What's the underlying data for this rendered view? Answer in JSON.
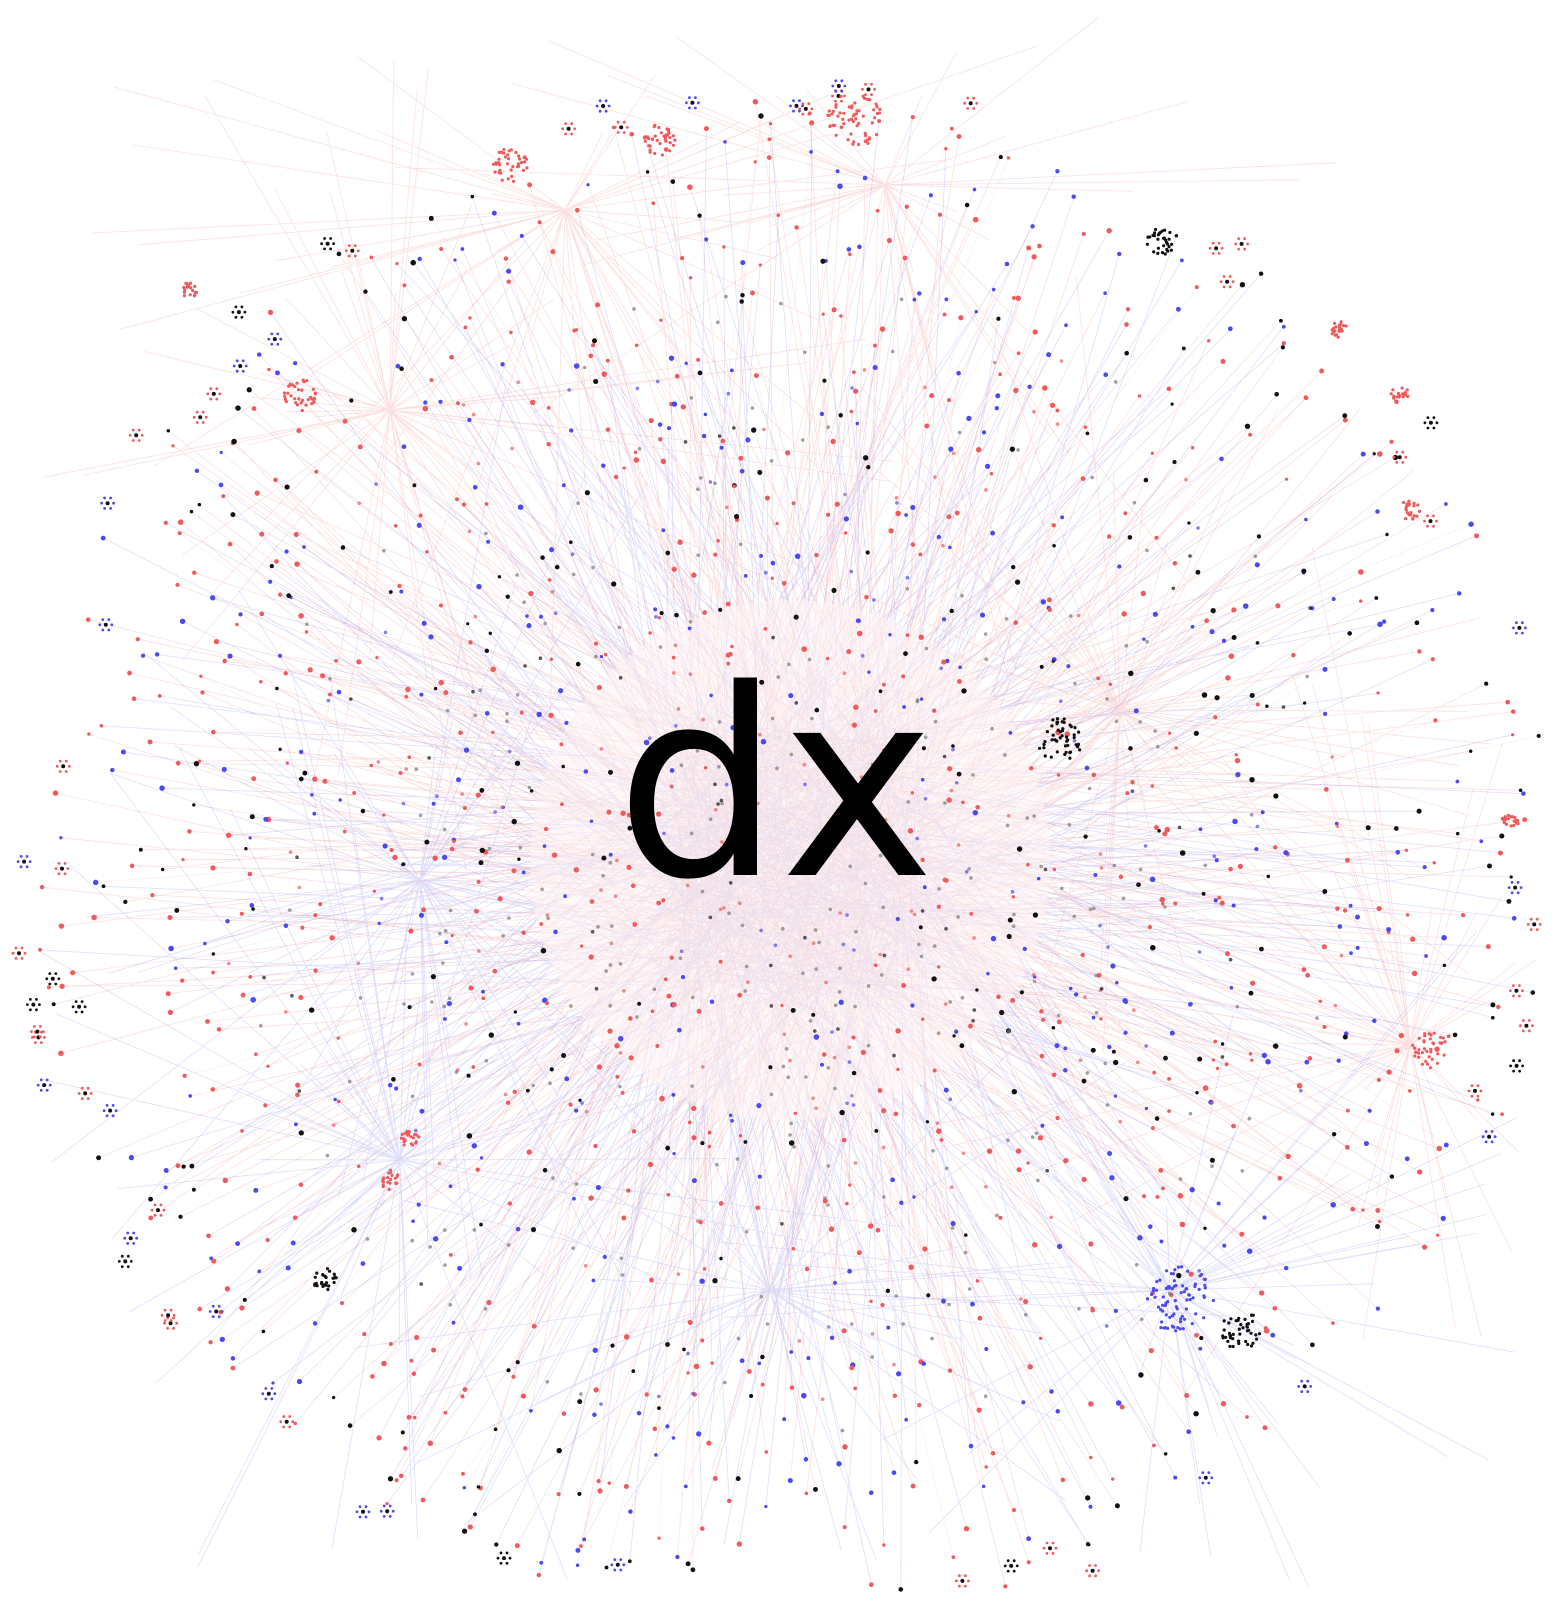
{
  "label": "dx"
}
